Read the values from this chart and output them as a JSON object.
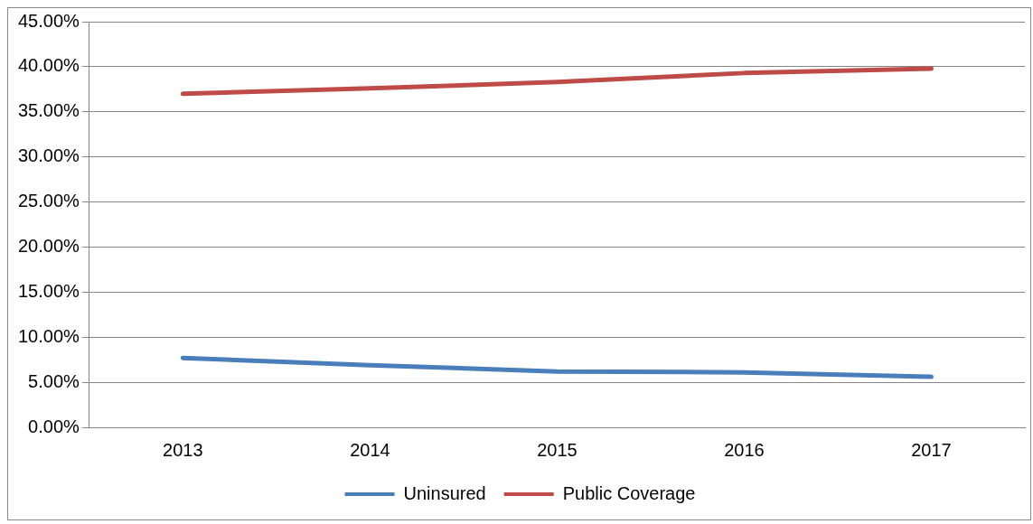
{
  "chart_data": {
    "type": "line",
    "categories": [
      "2013",
      "2014",
      "2015",
      "2016",
      "2017"
    ],
    "series": [
      {
        "name": "Uninsured",
        "color": "#4a7ebb",
        "values": [
          7.7,
          6.9,
          6.2,
          6.1,
          5.6
        ]
      },
      {
        "name": "Public Coverage",
        "color": "#be4b48",
        "values": [
          37.0,
          37.6,
          38.3,
          39.3,
          39.8
        ]
      }
    ],
    "ylim": [
      0,
      45
    ],
    "yticks": [
      {
        "value": 0,
        "label": "0.00%"
      },
      {
        "value": 5,
        "label": "5.00%"
      },
      {
        "value": 10,
        "label": "10.00%"
      },
      {
        "value": 15,
        "label": "15.00%"
      },
      {
        "value": 20,
        "label": "20.00%"
      },
      {
        "value": 25,
        "label": "25.00%"
      },
      {
        "value": 30,
        "label": "30.00%"
      },
      {
        "value": 35,
        "label": "35.00%"
      },
      {
        "value": 40,
        "label": "40.00%"
      },
      {
        "value": 45,
        "label": "45.00%"
      }
    ],
    "grid": "y",
    "legend": "bottom",
    "marker": "none",
    "line_style": "solid"
  }
}
